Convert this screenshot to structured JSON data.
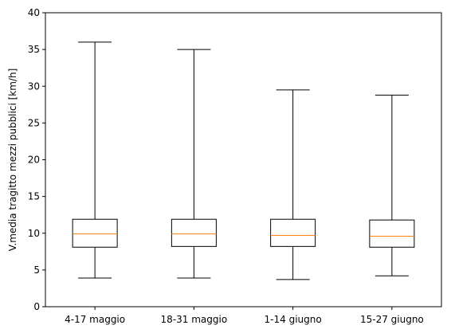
{
  "chart_data": {
    "type": "boxplot",
    "title": "",
    "xlabel": "",
    "ylabel": "V.media tragitto mezzi pubblici [km/h]",
    "ylim": [
      0,
      40
    ],
    "yticks": [
      0,
      5,
      10,
      15,
      20,
      25,
      30,
      35,
      40
    ],
    "grid": false,
    "colors": {
      "box": "#000000",
      "median": "#ff7f0e",
      "background": "#ffffff"
    },
    "categories": [
      "4-17 maggio",
      "18-31 maggio",
      "1-14 giugno",
      "15-27 giugno"
    ],
    "boxes": [
      {
        "whisker_low": 3.9,
        "q1": 8.1,
        "median": 9.9,
        "q3": 11.9,
        "whisker_high": 36.0
      },
      {
        "whisker_low": 3.9,
        "q1": 8.2,
        "median": 9.9,
        "q3": 11.9,
        "whisker_high": 35.0
      },
      {
        "whisker_low": 3.7,
        "q1": 8.2,
        "median": 9.7,
        "q3": 11.9,
        "whisker_high": 29.5
      },
      {
        "whisker_low": 4.2,
        "q1": 8.1,
        "median": 9.6,
        "q3": 11.8,
        "whisker_high": 28.8
      }
    ]
  }
}
